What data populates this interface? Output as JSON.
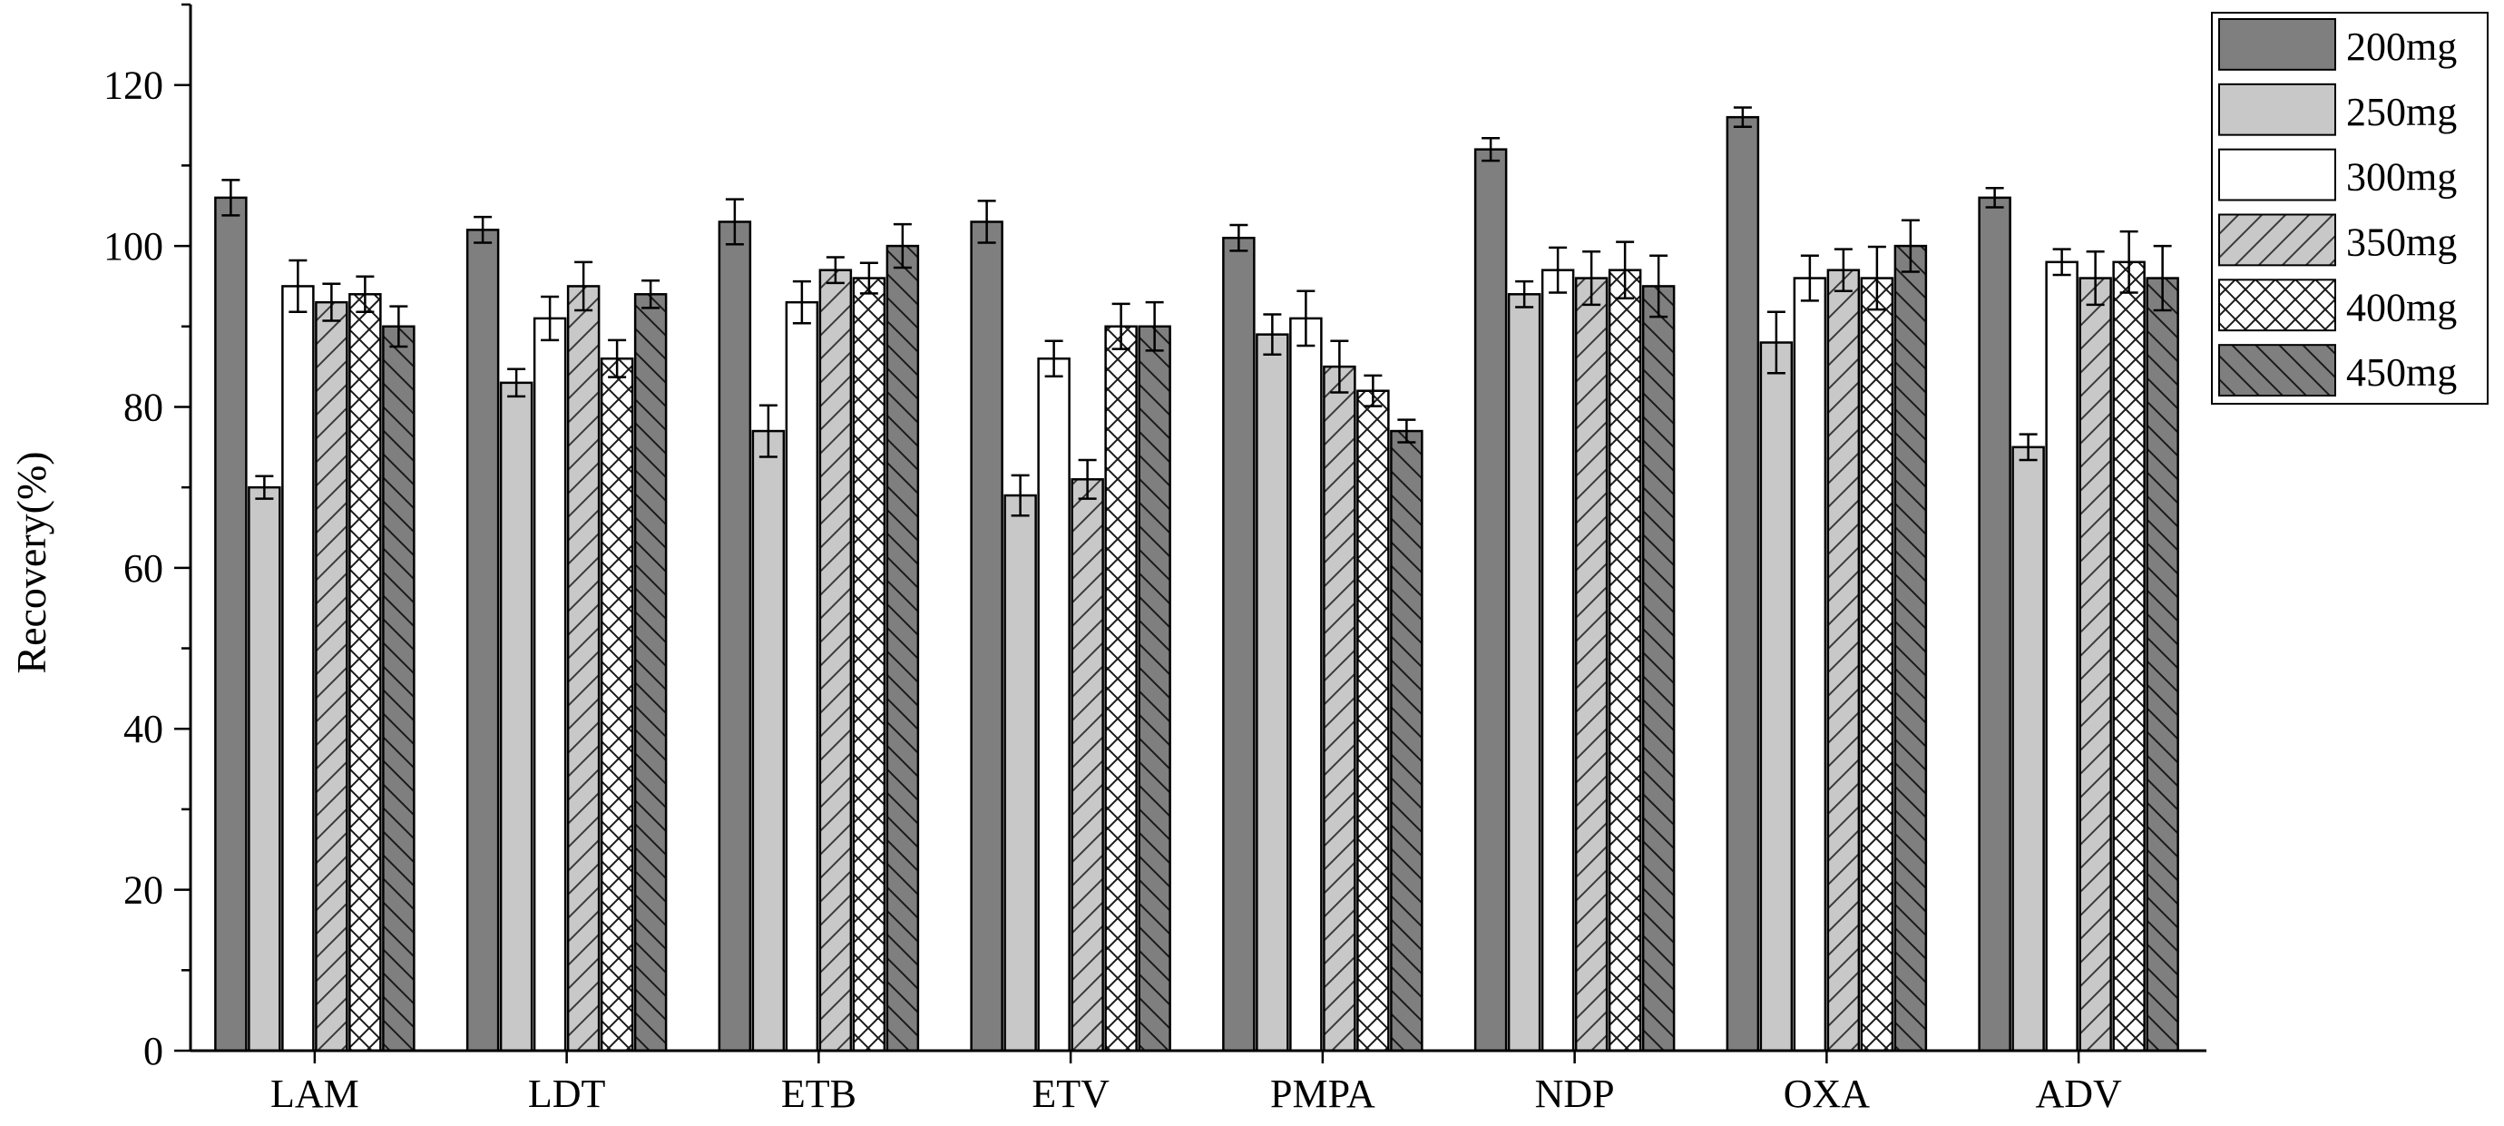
{
  "chart_data": {
    "type": "bar",
    "title": "",
    "xlabel": "",
    "ylabel": "Recovery(%)",
    "ylim": [
      0,
      130
    ],
    "yticks": [
      0,
      20,
      40,
      60,
      80,
      100,
      120
    ],
    "categories": [
      "LAM",
      "LDT",
      "ETB",
      "ETV",
      "PMPA",
      "NDP",
      "OXA",
      "ADV"
    ],
    "legend_position": "top-right",
    "series": [
      {
        "name": "200mg",
        "pattern": "solid-dark",
        "color": "#7f7f7f",
        "values": [
          106,
          102,
          103,
          103,
          101,
          112,
          116,
          106
        ],
        "errors": [
          2.2,
          1.6,
          2.8,
          2.6,
          1.6,
          1.4,
          1.2,
          1.2
        ]
      },
      {
        "name": "250mg",
        "pattern": "solid-light",
        "color": "#c8c8c8",
        "values": [
          70,
          83,
          77,
          69,
          89,
          94,
          88,
          75
        ],
        "errors": [
          1.4,
          1.7,
          3.2,
          2.5,
          2.5,
          1.6,
          3.8,
          1.6
        ]
      },
      {
        "name": "300mg",
        "pattern": "white",
        "color": "#ffffff",
        "values": [
          95,
          91,
          93,
          86,
          91,
          97,
          96,
          98
        ],
        "errors": [
          3.2,
          2.7,
          2.6,
          2.2,
          3.4,
          2.8,
          2.8,
          1.6
        ]
      },
      {
        "name": "350mg",
        "pattern": "forward-hatch",
        "color": "#c8c8c8",
        "values": [
          93,
          95,
          97,
          71,
          85,
          96,
          97,
          96
        ],
        "errors": [
          2.3,
          3.0,
          1.6,
          2.4,
          3.2,
          3.3,
          2.6,
          3.3
        ]
      },
      {
        "name": "400mg",
        "pattern": "crosshatch",
        "color": "#ffffff",
        "values": [
          94,
          86,
          96,
          90,
          82,
          97,
          96,
          98
        ],
        "errors": [
          2.2,
          2.3,
          1.9,
          2.8,
          1.9,
          3.5,
          3.9,
          3.8
        ]
      },
      {
        "name": "450mg",
        "pattern": "back-hatch-dark",
        "color": "#7f7f7f",
        "values": [
          90,
          94,
          100,
          90,
          77,
          95,
          100,
          96
        ],
        "errors": [
          2.5,
          1.7,
          2.7,
          3.0,
          1.4,
          3.8,
          3.2,
          4.0
        ]
      }
    ]
  }
}
